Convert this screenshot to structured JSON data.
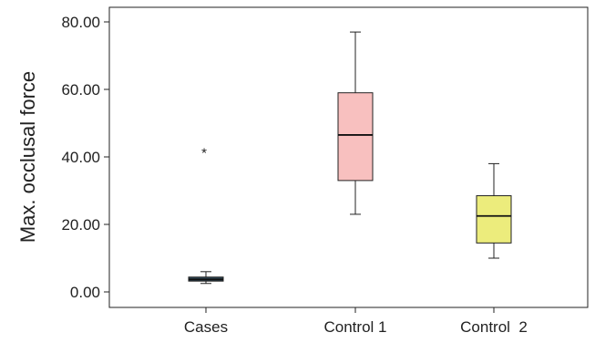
{
  "chart_data": {
    "type": "box",
    "ylabel": "Max. occlusal force",
    "ylim": [
      0,
      80
    ],
    "yticks": [
      "0.00",
      "20.00",
      "40.00",
      "60.00",
      "80.00"
    ],
    "yticks_values": [
      0,
      20,
      40,
      60,
      80
    ],
    "grid": false,
    "legend": "none",
    "categories": [
      "Cases",
      "Control 1",
      "Control  2"
    ],
    "boxes": [
      {
        "category": "Cases",
        "min": 2.5,
        "q1": 3.2,
        "median": 3.7,
        "q3": 4.4,
        "max": 6.0,
        "outliers": [
          42
        ],
        "outlier_symbol": "*",
        "color": "#2f4858"
      },
      {
        "category": "Control 1",
        "min": 23,
        "q1": 33,
        "median": 46.5,
        "q3": 59,
        "max": 77,
        "outliers": [],
        "outlier_symbol": "*",
        "color": "#f8c0bf"
      },
      {
        "category": "Control  2",
        "min": 10,
        "q1": 14.5,
        "median": 22.5,
        "q3": 28.5,
        "max": 38,
        "outliers": [],
        "outlier_symbol": "*",
        "color": "#ecec7c"
      }
    ]
  }
}
